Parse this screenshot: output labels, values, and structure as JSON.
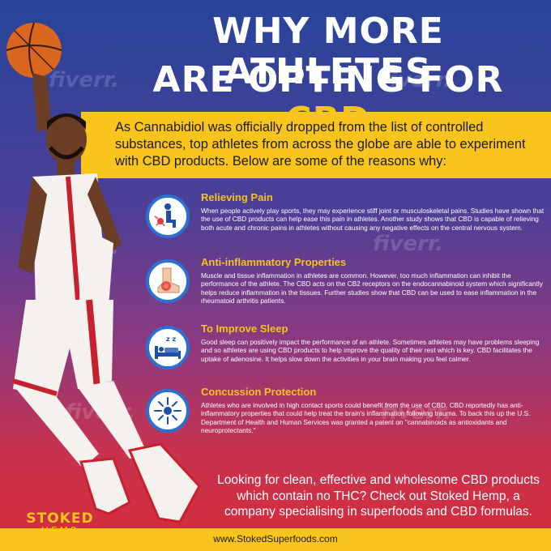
{
  "watermark": "fiverr.",
  "title": {
    "line1": "WHY MORE ATHLETES",
    "line2_prefix": "ARE OPTING FOR",
    "line2_accent": "CBD"
  },
  "intro": "As Cannabidiol was officially dropped from the list of controlled substances, top athletes from across the globe are able to experiment with CBD products. Below are some of the reasons why:",
  "reasons": [
    {
      "title": "Relieving Pain",
      "icon": "knee-pain-icon",
      "body": "When people actively play sports, they may experience stiff joint or musculoskeletal pains. Studies have shown that the use of CBD products can help ease this pain in athletes. Another study shows that CBD is capable of relieving both acute and chronic pains in athletes without causing any negative effects on the central nervous system."
    },
    {
      "title": "Anti-inflammatory Properties",
      "icon": "inflamed-foot-icon",
      "body": "Muscle and tissue inflammation in athletes are common. However, too much inflammation can inhibit the performance of the athlete. The CBD acts on the CB2 receptors on the endocannabinoid system which significantly helps reduce inflammation in the tissues. Further studies show that CBD can be used to ease inflammation in the rheumatoid arthritis patients."
    },
    {
      "title": "To Improve Sleep",
      "icon": "sleeping-bed-icon",
      "body": "Good sleep can positively impact the performance of an athlete. Sometimes athletes may have problems sleeping and so athletes are using CBD products to help improve the quality of their rest which is key. CBD facilitates the uptake of adenosine. It helps slow down the activities in your brain making you feel calmer."
    },
    {
      "title": "Concussion Protection",
      "icon": "brain-injury-icon",
      "body": "Athletes who are involved in high contact sports could benefit from the use of CBD. CBD reportedly has anti-inflammatory properties that could help treat the brain's inflammation following trauma. To back this up the U.S. Department of Health and Human Services was granted a patent on \"cannabinoids as antioxidants and neuroprotectants.\""
    }
  ],
  "cta": "Looking for clean, effective and wholesome CBD products which contain no THC? Check out Stoked Hemp, a company specialising in superfoods and CBD formulas.",
  "logo": {
    "top": "STOKED",
    "bottom": "HEMP"
  },
  "footer_url": "www.StokedSuperfoods.com",
  "colors": {
    "accent_yellow": "#f9c41c",
    "icon_ring_blue": "#2c6fd0",
    "jersey_red": "#c8202c",
    "basketball_orange": "#d8661f"
  }
}
